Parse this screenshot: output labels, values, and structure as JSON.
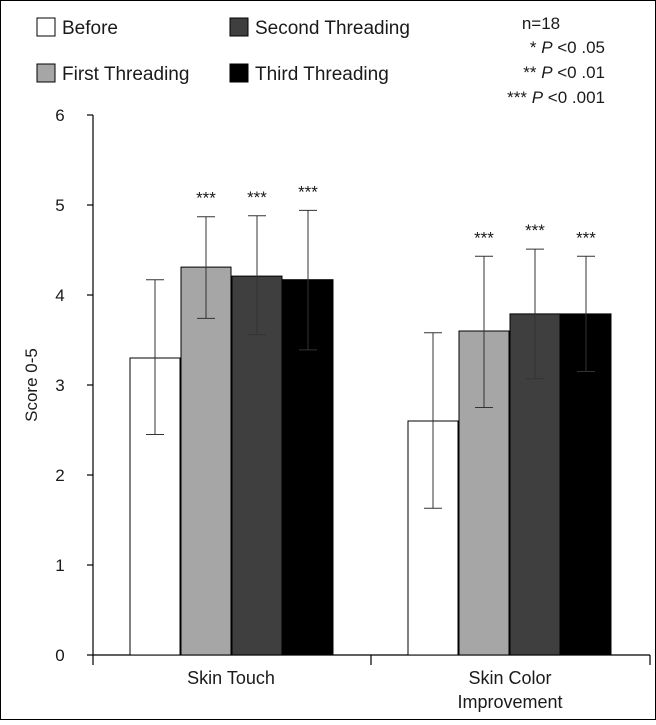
{
  "chart_data": {
    "type": "bar",
    "ylabel": "Score 0-5",
    "xlabel": "",
    "ylim": [
      0,
      6
    ],
    "yticks": [
      "0",
      "1",
      "2",
      "3",
      "4",
      "5",
      "6"
    ],
    "categories": [
      "Skin Touch",
      "Skin Color\nImprovement"
    ],
    "legend_position": "top",
    "series": [
      {
        "name": "Before",
        "color": "#ffffff",
        "values": [
          3.3,
          2.6
        ],
        "error": [
          [
            2.45,
            4.17
          ],
          [
            1.63,
            3.58
          ]
        ],
        "significance": [
          "",
          ""
        ]
      },
      {
        "name": "First Threading",
        "color": "#a6a6a6",
        "values": [
          4.31,
          3.6
        ],
        "error": [
          [
            3.74,
            4.87
          ],
          [
            2.75,
            4.43
          ]
        ],
        "significance": [
          "***",
          "***"
        ]
      },
      {
        "name": "Second Threading",
        "color": "#3f3f3f",
        "values": [
          4.21,
          3.79
        ],
        "error": [
          [
            3.56,
            4.88
          ],
          [
            3.07,
            4.51
          ]
        ],
        "significance": [
          "***",
          "***"
        ]
      },
      {
        "name": "Third Threading",
        "color": "#000000",
        "values": [
          4.17,
          3.79
        ],
        "error": [
          [
            3.39,
            4.94
          ],
          [
            3.15,
            4.43
          ]
        ],
        "significance": [
          "***",
          "***"
        ]
      }
    ],
    "annotations": {
      "n": "n=18",
      "p_lines": [
        {
          "stars": "*",
          "p": "P",
          "rest": "<0 .05"
        },
        {
          "stars": "**",
          "p": "P",
          "rest": "<0 .01"
        },
        {
          "stars": "***",
          "p": "P",
          "rest": " <0 .001"
        }
      ]
    }
  }
}
